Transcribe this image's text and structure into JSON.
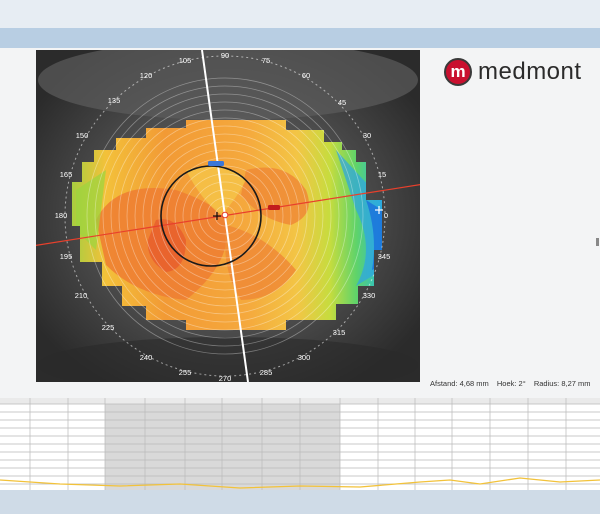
{
  "app": {
    "brand": "medmont",
    "brand_mark": "m"
  },
  "axis_degrees": [
    "90",
    "75",
    "60",
    "45",
    "30",
    "15",
    "0",
    "345",
    "330",
    "315",
    "300",
    "285",
    "270",
    "255",
    "240",
    "225",
    "210",
    "195",
    "180",
    "165",
    "150",
    "135",
    "120",
    "105"
  ],
  "map_labels": {
    "pupil_marker": "",
    "flat_marker": ""
  },
  "measurements": {
    "distance": "Afstand:  4,68 mm",
    "angle": "Hoek:  2°",
    "radius": "Radius:  8,27 mm"
  },
  "colors": {
    "header": "#b8cee3",
    "map_orange": "#f2a33a",
    "map_green": "#82d64a",
    "map_blue": "#2d8be6",
    "axis_red": "#e8402c"
  },
  "icons": [
    "logo-mark-icon",
    "crosshair-icon",
    "center-marker-icon"
  ]
}
